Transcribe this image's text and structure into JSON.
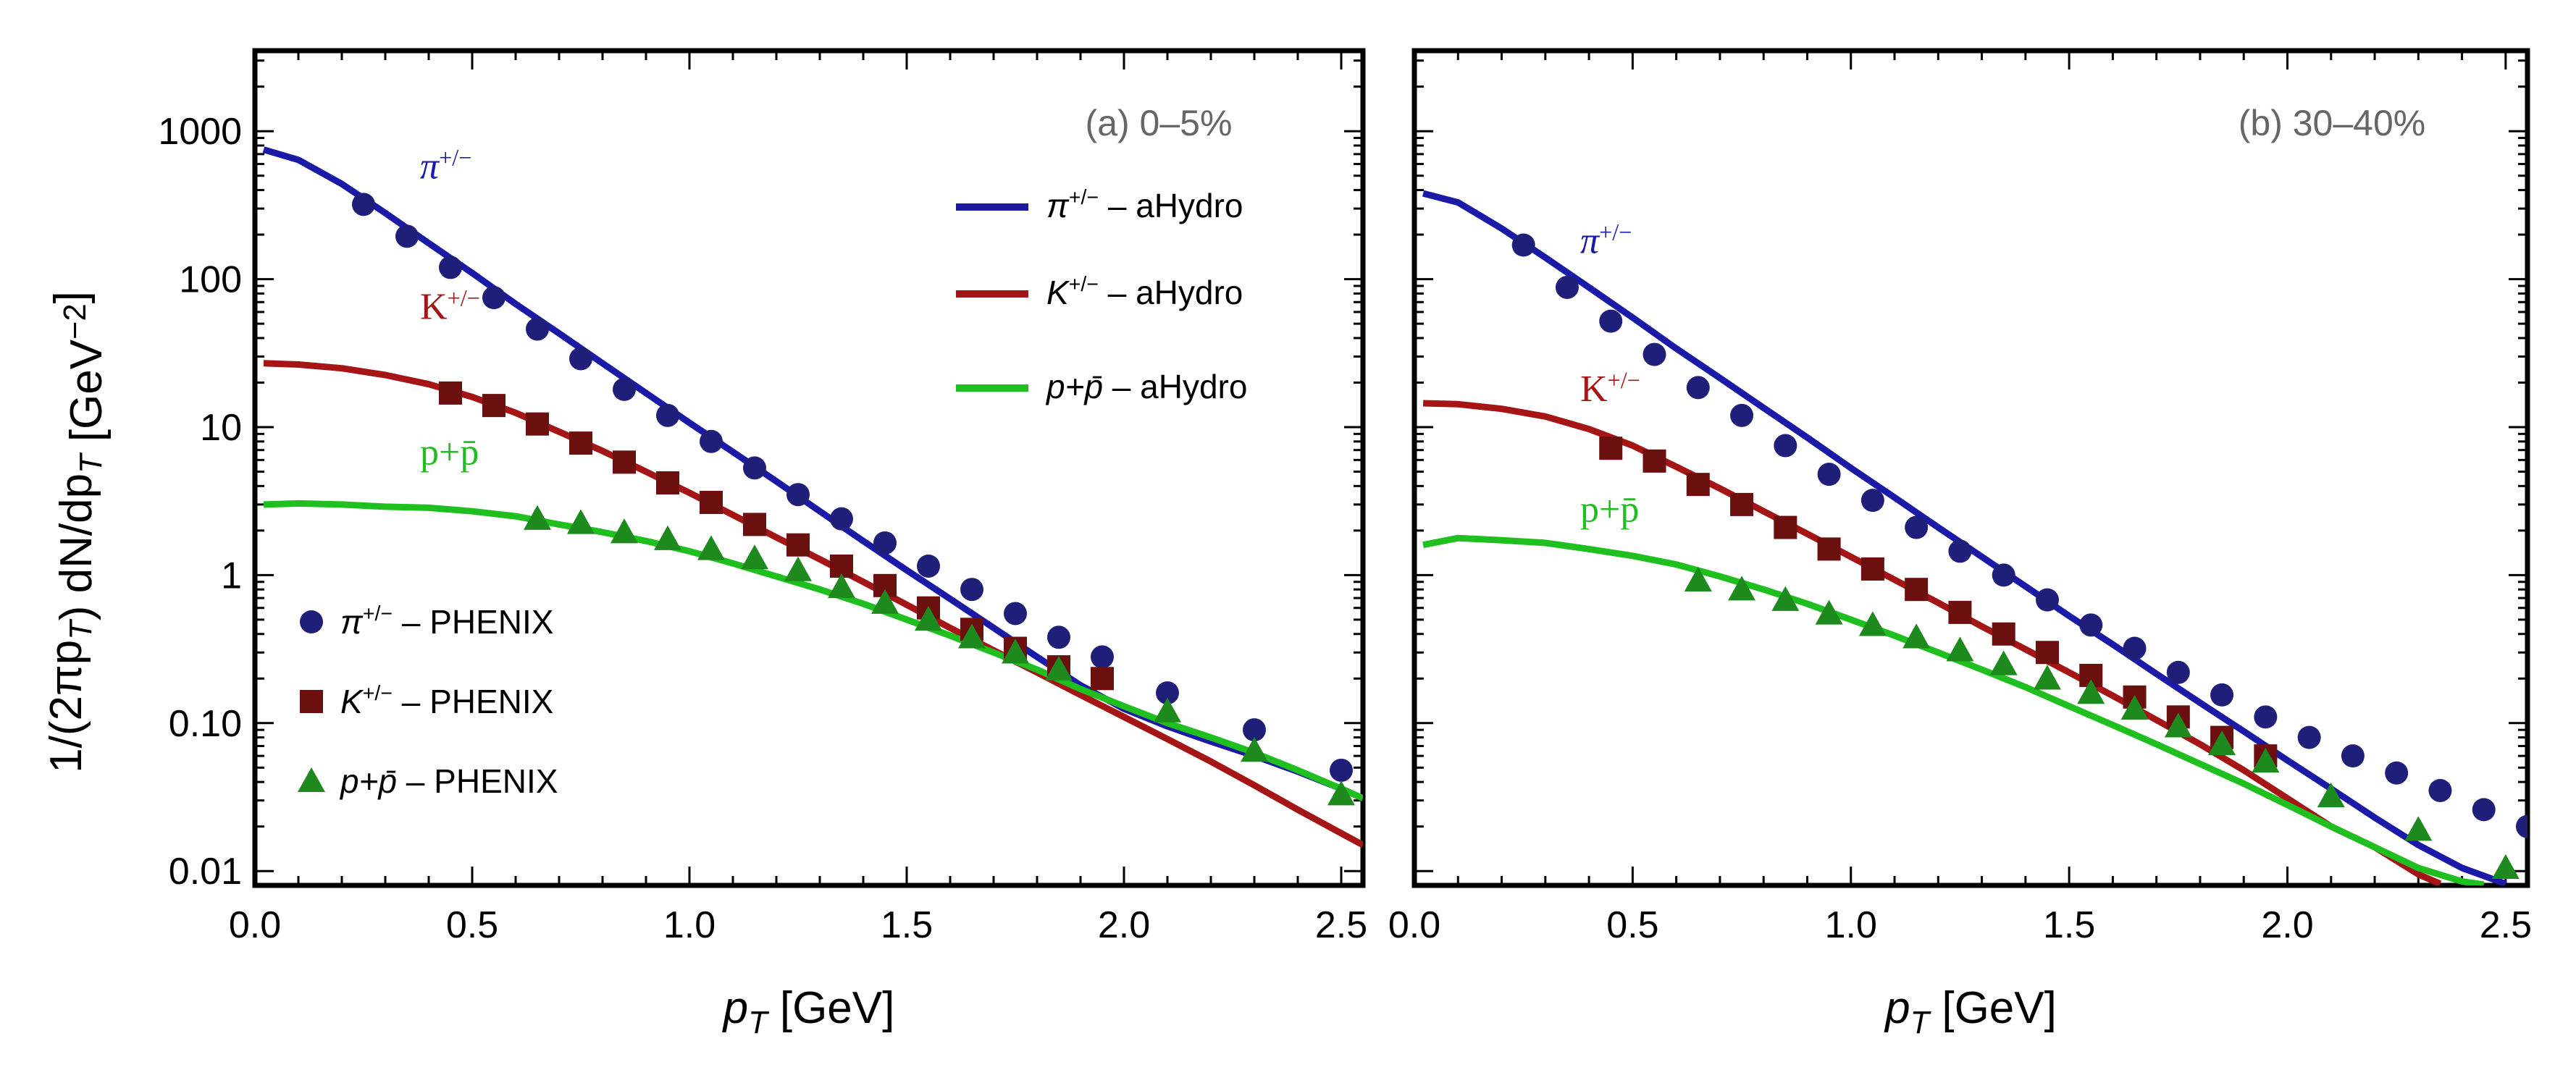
{
  "colors": {
    "pion": "#1a1aa6",
    "kaon": "#a51515",
    "proton": "#1fbf1f",
    "pion_marker": "#1f1f7a",
    "kaon_marker": "#6b0f0f",
    "proton_marker": "#1e8a1e",
    "panel_title": "#666666"
  },
  "axes": {
    "ylabel": "1/(2πp_T) dN/dp_T [GeV^−2]",
    "xlabel": "p_T [GeV]"
  },
  "legend": {
    "lines": [
      {
        "particle": "π",
        "sup": "+/−",
        "suffix": " – aHydro",
        "series": "pion"
      },
      {
        "particle": "K",
        "sup": "+/−",
        "suffix": " – aHydro",
        "series": "kaon"
      },
      {
        "particle": "p+p̄",
        "sup": "",
        "suffix": " – aHydro",
        "series": "proton"
      }
    ],
    "markers": [
      {
        "particle": "π",
        "sup": "+/−",
        "suffix": " – PHENIX",
        "series": "pion",
        "shape": "circle"
      },
      {
        "particle": "K",
        "sup": "+/−",
        "suffix": " – PHENIX",
        "series": "kaon",
        "shape": "square"
      },
      {
        "particle": "p+p̄",
        "sup": "",
        "suffix": " – PHENIX",
        "series": "proton",
        "shape": "triangle"
      }
    ]
  },
  "chart_data": [
    {
      "type": "line",
      "title": "(a) 0–5%",
      "xlabel": "p_T [GeV]",
      "ylabel": "1/(2πp_T) dN/dp_T [GeV^−2]",
      "xlim": [
        0,
        2.55
      ],
      "ylim": [
        0.008,
        3500
      ],
      "yscale": "log",
      "xticks": [
        0.0,
        0.5,
        1.0,
        1.5,
        2.0,
        2.5
      ],
      "xtick_labels": [
        "0.0",
        "0.5",
        "1.0",
        "1.5",
        "2.0",
        "2.5"
      ],
      "yticks": [
        0.01,
        0.1,
        1,
        10,
        100,
        1000
      ],
      "ytick_labels": [
        "0.01",
        "0.10",
        "1",
        "10",
        "100",
        "1000"
      ],
      "curve_labels": [
        {
          "text": "π",
          "sup": "+/−",
          "series": "pion",
          "x": 0.38,
          "y": 480
        },
        {
          "text": "K",
          "sup": "+/−",
          "series": "kaon",
          "x": 0.38,
          "y": 54
        },
        {
          "text": "p+p̄",
          "sup": "",
          "series": "proton",
          "x": 0.38,
          "y": 5.6
        }
      ],
      "series": [
        {
          "name": "π+/− – aHydro",
          "kind": "model",
          "particle": "pion",
          "x": [
            0.02,
            0.1,
            0.2,
            0.3,
            0.4,
            0.5,
            0.6,
            0.7,
            0.8,
            0.9,
            1.0,
            1.1,
            1.2,
            1.3,
            1.4,
            1.5,
            1.6,
            1.7,
            1.8,
            1.9,
            2.0,
            2.1,
            2.2,
            2.3,
            2.4,
            2.5,
            2.55
          ],
          "y": [
            750,
            640,
            440,
            280,
            175,
            110,
            68,
            43,
            27,
            17,
            10.7,
            6.8,
            4.3,
            2.7,
            1.7,
            1.08,
            0.69,
            0.44,
            0.28,
            0.18,
            0.125,
            0.095,
            0.075,
            0.06,
            0.047,
            0.036,
            0.031
          ]
        },
        {
          "name": "K+/− – aHydro",
          "kind": "model",
          "particle": "kaon",
          "x": [
            0.02,
            0.1,
            0.2,
            0.3,
            0.4,
            0.5,
            0.6,
            0.7,
            0.8,
            0.9,
            1.0,
            1.1,
            1.2,
            1.3,
            1.4,
            1.5,
            1.6,
            1.7,
            1.8,
            1.9,
            2.0,
            2.1,
            2.2,
            2.3,
            2.4,
            2.5,
            2.55
          ],
          "y": [
            27,
            26.5,
            25,
            22.5,
            19.5,
            16,
            12.5,
            9.3,
            6.9,
            5.0,
            3.6,
            2.55,
            1.8,
            1.28,
            0.9,
            0.63,
            0.44,
            0.31,
            0.22,
            0.155,
            0.11,
            0.078,
            0.055,
            0.038,
            0.026,
            0.018,
            0.015
          ]
        },
        {
          "name": "p+p̄ – aHydro",
          "kind": "model",
          "particle": "proton",
          "x": [
            0.02,
            0.1,
            0.2,
            0.3,
            0.4,
            0.5,
            0.6,
            0.7,
            0.8,
            0.9,
            1.0,
            1.1,
            1.2,
            1.3,
            1.4,
            1.5,
            1.6,
            1.7,
            1.8,
            1.9,
            2.0,
            2.1,
            2.2,
            2.3,
            2.4,
            2.5,
            2.55
          ],
          "y": [
            3.0,
            3.05,
            3.0,
            2.9,
            2.85,
            2.7,
            2.5,
            2.2,
            1.95,
            1.7,
            1.45,
            1.2,
            0.98,
            0.8,
            0.64,
            0.5,
            0.39,
            0.3,
            0.23,
            0.17,
            0.13,
            0.1,
            0.08,
            0.063,
            0.048,
            0.036,
            0.031
          ]
        },
        {
          "name": "π+/− – PHENIX",
          "kind": "data",
          "particle": "pion",
          "marker": "circle",
          "x": [
            0.25,
            0.35,
            0.45,
            0.55,
            0.65,
            0.75,
            0.85,
            0.95,
            1.05,
            1.15,
            1.25,
            1.35,
            1.45,
            1.55,
            1.65,
            1.75,
            1.85,
            1.95,
            2.1,
            2.3,
            2.5
          ],
          "y": [
            320,
            195,
            120,
            75,
            46,
            29,
            18,
            12,
            8.0,
            5.3,
            3.5,
            2.4,
            1.65,
            1.15,
            0.8,
            0.55,
            0.38,
            0.28,
            0.16,
            0.09,
            0.048
          ]
        },
        {
          "name": "K+/− – PHENIX",
          "kind": "data",
          "particle": "kaon",
          "marker": "square",
          "x": [
            0.45,
            0.55,
            0.65,
            0.75,
            0.85,
            0.95,
            1.05,
            1.15,
            1.25,
            1.35,
            1.45,
            1.55,
            1.65,
            1.75,
            1.85,
            1.95
          ],
          "y": [
            17,
            14,
            10.5,
            7.8,
            5.8,
            4.2,
            3.1,
            2.2,
            1.6,
            1.15,
            0.85,
            0.6,
            0.43,
            0.32,
            0.24,
            0.2
          ]
        },
        {
          "name": "p+p̄ – PHENIX",
          "kind": "data",
          "particle": "proton",
          "marker": "triangle",
          "x": [
            0.65,
            0.75,
            0.85,
            0.95,
            1.05,
            1.15,
            1.25,
            1.35,
            1.45,
            1.55,
            1.65,
            1.75,
            1.85,
            2.1,
            2.3,
            2.5
          ],
          "y": [
            2.4,
            2.25,
            1.95,
            1.75,
            1.5,
            1.3,
            1.08,
            0.83,
            0.65,
            0.5,
            0.38,
            0.3,
            0.23,
            0.12,
            0.065,
            0.033
          ]
        }
      ]
    },
    {
      "type": "line",
      "title": "(b) 30–40%",
      "xlabel": "p_T [GeV]",
      "xlim": [
        0,
        2.55
      ],
      "ylim": [
        0.008,
        3500
      ],
      "yscale": "log",
      "xticks": [
        0.0,
        0.5,
        1.0,
        1.5,
        2.0,
        2.5
      ],
      "xtick_labels": [
        "0.0",
        "0.5",
        "1.0",
        "1.5",
        "2.0",
        "2.5"
      ],
      "yticks": [
        0.01,
        0.1,
        1,
        10,
        100,
        1000
      ],
      "ytick_labels": [],
      "curve_labels": [
        {
          "text": "π",
          "sup": "+/−",
          "series": "pion",
          "x": 0.38,
          "y": 150
        },
        {
          "text": "K",
          "sup": "+/−",
          "series": "kaon",
          "x": 0.38,
          "y": 15
        },
        {
          "text": "p+p̄",
          "sup": "",
          "series": "proton",
          "x": 0.38,
          "y": 2.3
        }
      ],
      "series": [
        {
          "name": "π+/− – aHydro",
          "kind": "model",
          "particle": "pion",
          "x": [
            0.02,
            0.1,
            0.2,
            0.3,
            0.4,
            0.5,
            0.6,
            0.7,
            0.8,
            0.9,
            1.0,
            1.1,
            1.2,
            1.3,
            1.4,
            1.5,
            1.6,
            1.7,
            1.8,
            1.9,
            2.0,
            2.1,
            2.2,
            2.3,
            2.4,
            2.5
          ],
          "y": [
            380,
            330,
            220,
            140,
            88,
            55,
            34,
            21.5,
            13.5,
            8.5,
            5.3,
            3.35,
            2.1,
            1.33,
            0.84,
            0.53,
            0.34,
            0.215,
            0.137,
            0.088,
            0.056,
            0.036,
            0.023,
            0.015,
            0.0105,
            0.0082
          ]
        },
        {
          "name": "K+/− – aHydro",
          "kind": "model",
          "particle": "kaon",
          "x": [
            0.02,
            0.1,
            0.2,
            0.3,
            0.4,
            0.5,
            0.6,
            0.7,
            0.8,
            0.9,
            1.0,
            1.1,
            1.2,
            1.3,
            1.4,
            1.5,
            1.6,
            1.7,
            1.8,
            1.9,
            2.0,
            2.1,
            2.2,
            2.3,
            2.35
          ],
          "y": [
            14.5,
            14.3,
            13.3,
            11.8,
            9.7,
            7.5,
            5.4,
            3.85,
            2.7,
            1.9,
            1.33,
            0.93,
            0.65,
            0.45,
            0.315,
            0.22,
            0.153,
            0.105,
            0.072,
            0.048,
            0.031,
            0.02,
            0.0145,
            0.0095,
            0.0082
          ]
        },
        {
          "name": "p+p̄ – aHydro",
          "kind": "model",
          "particle": "proton",
          "x": [
            0.02,
            0.1,
            0.2,
            0.3,
            0.4,
            0.5,
            0.6,
            0.7,
            0.8,
            0.9,
            1.0,
            1.1,
            1.2,
            1.3,
            1.4,
            1.5,
            1.6,
            1.7,
            1.8,
            1.9,
            2.0,
            2.1,
            2.2,
            2.3,
            2.4,
            2.45
          ],
          "y": [
            1.6,
            1.78,
            1.72,
            1.65,
            1.5,
            1.35,
            1.18,
            0.98,
            0.8,
            0.64,
            0.5,
            0.39,
            0.3,
            0.23,
            0.175,
            0.13,
            0.097,
            0.072,
            0.053,
            0.039,
            0.028,
            0.02,
            0.0145,
            0.0105,
            0.0085,
            0.0081
          ]
        },
        {
          "name": "π+/− – PHENIX",
          "kind": "data",
          "particle": "pion",
          "marker": "circle",
          "x": [
            0.25,
            0.35,
            0.45,
            0.55,
            0.65,
            0.75,
            0.85,
            0.95,
            1.05,
            1.15,
            1.25,
            1.35,
            1.45,
            1.55,
            1.65,
            1.75,
            1.85,
            1.95,
            2.05,
            2.15,
            2.25,
            2.35,
            2.45,
            2.55
          ],
          "y": [
            170,
            88,
            52,
            31,
            18.5,
            12,
            7.5,
            4.8,
            3.2,
            2.1,
            1.45,
            1.0,
            0.68,
            0.46,
            0.32,
            0.22,
            0.155,
            0.11,
            0.08,
            0.06,
            0.046,
            0.035,
            0.026,
            0.02
          ]
        },
        {
          "name": "K+/− – PHENIX",
          "kind": "data",
          "particle": "kaon",
          "marker": "square",
          "x": [
            0.45,
            0.55,
            0.65,
            0.75,
            0.85,
            0.95,
            1.05,
            1.15,
            1.25,
            1.35,
            1.45,
            1.55,
            1.65,
            1.75,
            1.85,
            1.95
          ],
          "y": [
            7.2,
            5.9,
            4.1,
            3.0,
            2.1,
            1.5,
            1.1,
            0.8,
            0.56,
            0.4,
            0.3,
            0.21,
            0.15,
            0.11,
            0.08,
            0.06
          ]
        },
        {
          "name": "p+p̄ – PHENIX",
          "kind": "data",
          "particle": "proton",
          "marker": "triangle",
          "x": [
            0.65,
            0.75,
            0.85,
            0.95,
            1.05,
            1.15,
            1.25,
            1.35,
            1.45,
            1.55,
            1.65,
            1.75,
            1.85,
            1.95,
            2.1,
            2.3,
            2.5
          ],
          "y": [
            0.92,
            0.8,
            0.68,
            0.55,
            0.46,
            0.38,
            0.31,
            0.25,
            0.2,
            0.16,
            0.125,
            0.095,
            0.072,
            0.055,
            0.032,
            0.019,
            0.0105
          ]
        }
      ]
    }
  ]
}
